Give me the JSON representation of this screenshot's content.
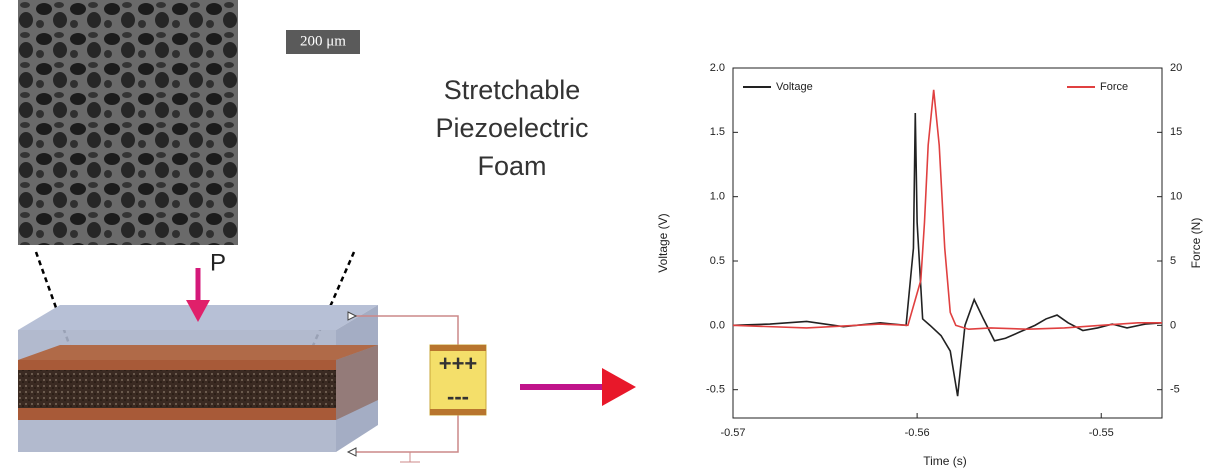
{
  "diagram": {
    "title_lines": [
      "Stretchable",
      "Piezoelectric",
      "Foam"
    ],
    "scale_bar": "200 μm",
    "pressure_label": "P",
    "charge_top": "+++",
    "charge_bottom": "---"
  },
  "chart_data": {
    "type": "line",
    "x_label": "Time (s)",
    "y_label": "Voltage (V)",
    "y2_label": "Force (N)",
    "xlim": [
      -0.57,
      -0.5467
    ],
    "xticks": [
      -0.57,
      -0.56,
      -0.55
    ],
    "ylim": [
      -0.72,
      2.0
    ],
    "yticks": [
      -0.5,
      {
        "value": 0,
        "label": "0.0"
      },
      0.5,
      {
        "value": 1,
        "label": "1.0"
      },
      1.5,
      {
        "value": 2,
        "label": "2.0"
      }
    ],
    "y2lim": [
      -7.2,
      20
    ],
    "y2ticks": [
      -5,
      0,
      5,
      10,
      15,
      20
    ],
    "series": [
      {
        "name": "Voltage",
        "color": "#222222",
        "x": [
          -0.57,
          -0.568,
          -0.566,
          -0.564,
          -0.562,
          -0.5606,
          -0.5602,
          -0.5601,
          -0.56,
          -0.5597,
          -0.5593,
          -0.5587,
          -0.5582,
          -0.5578,
          -0.5574,
          -0.5569,
          -0.5564,
          -0.5558,
          -0.5552,
          -0.5544,
          -0.5536,
          -0.553,
          -0.5524,
          -0.5518,
          -0.551,
          -0.5502,
          -0.5494,
          -0.5486,
          -0.5476,
          -0.5467
        ],
        "values": [
          0,
          0.01,
          0.03,
          -0.01,
          0.02,
          0,
          0.6,
          1.65,
          0.8,
          0.05,
          0,
          -0.08,
          -0.2,
          -0.55,
          0,
          0.2,
          0.05,
          -0.12,
          -0.1,
          -0.05,
          0,
          0.05,
          0.08,
          0.02,
          -0.04,
          -0.02,
          0.01,
          -0.02,
          0.01,
          0.02
        ]
      },
      {
        "name": "Force",
        "color": "#e04040",
        "axis": "y2",
        "x": [
          -0.57,
          -0.566,
          -0.562,
          -0.5605,
          -0.5601,
          -0.5598,
          -0.5596,
          -0.5594,
          -0.5591,
          -0.5588,
          -0.5585,
          -0.5582,
          -0.5579,
          -0.5572,
          -0.556,
          -0.554,
          -0.552,
          -0.55,
          -0.548,
          -0.5467
        ],
        "values": [
          0,
          -0.2,
          0.1,
          0,
          2,
          3.5,
          8,
          14,
          18.3,
          14,
          6,
          1,
          0,
          -0.3,
          -0.2,
          -0.3,
          -0.2,
          0,
          0.2,
          0.2
        ]
      }
    ]
  }
}
